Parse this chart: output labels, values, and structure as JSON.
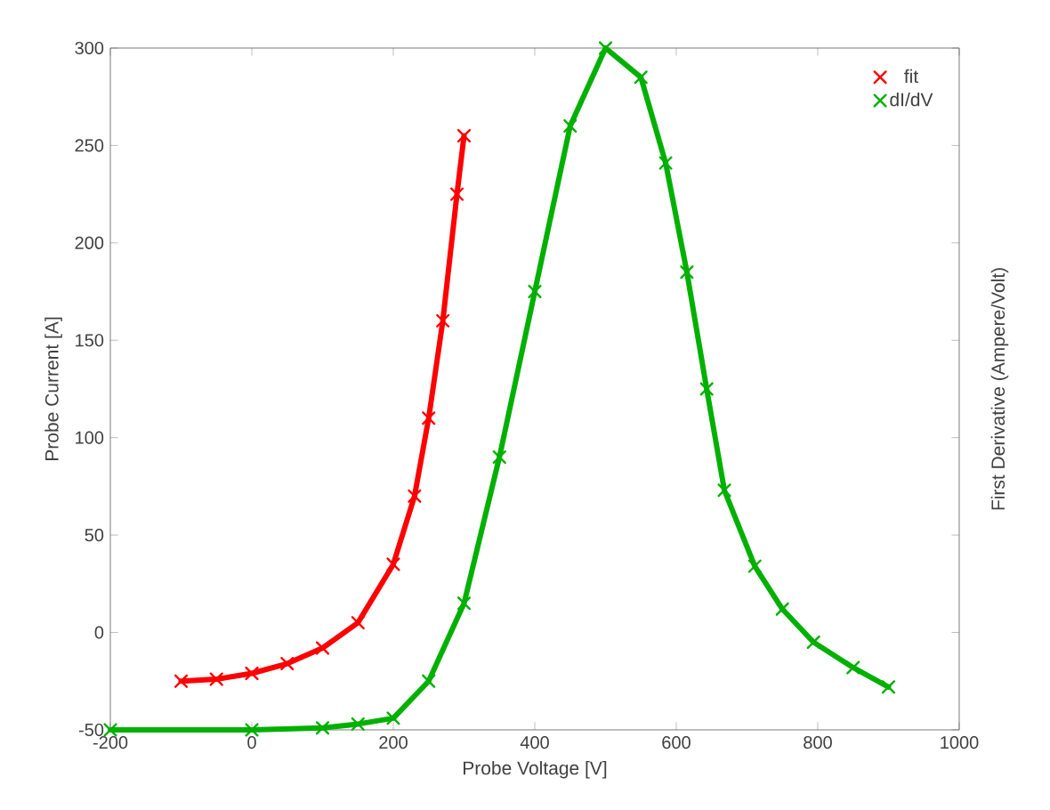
{
  "chart_data": {
    "type": "line",
    "xlabel": "Probe Voltage [V]",
    "ylabel": "Probe Current [A]",
    "y2label": "First Derivative (Ampere/Volt)",
    "xlim": [
      -200,
      1000
    ],
    "ylim": [
      -50,
      300
    ],
    "xticks": [
      -200,
      0,
      200,
      400,
      600,
      800,
      1000
    ],
    "yticks": [
      -50,
      0,
      50,
      100,
      150,
      200,
      250,
      300
    ],
    "legend": "top right",
    "marker": "cross",
    "grid": false,
    "series": [
      {
        "name": "fit",
        "color": "#ff0000",
        "x": [
          -100,
          -50,
          0,
          50,
          100,
          150,
          200,
          230,
          250,
          270,
          290,
          300
        ],
        "values": [
          -25,
          -24,
          -21,
          -16,
          -8,
          5,
          35,
          70,
          110,
          160,
          225,
          255
        ]
      },
      {
        "name": "dI/dV",
        "color": "#00b000",
        "x": [
          -200,
          0,
          100,
          150,
          200,
          250,
          300,
          350,
          400,
          450,
          500,
          550,
          585,
          615,
          643,
          668,
          711,
          750,
          794,
          850,
          900
        ],
        "values": [
          -50,
          -50,
          -49,
          -47,
          -44,
          -25,
          15,
          90,
          175,
          260,
          300,
          285,
          241,
          185,
          125,
          73,
          34,
          12,
          -5,
          -18,
          -28
        ]
      }
    ]
  }
}
